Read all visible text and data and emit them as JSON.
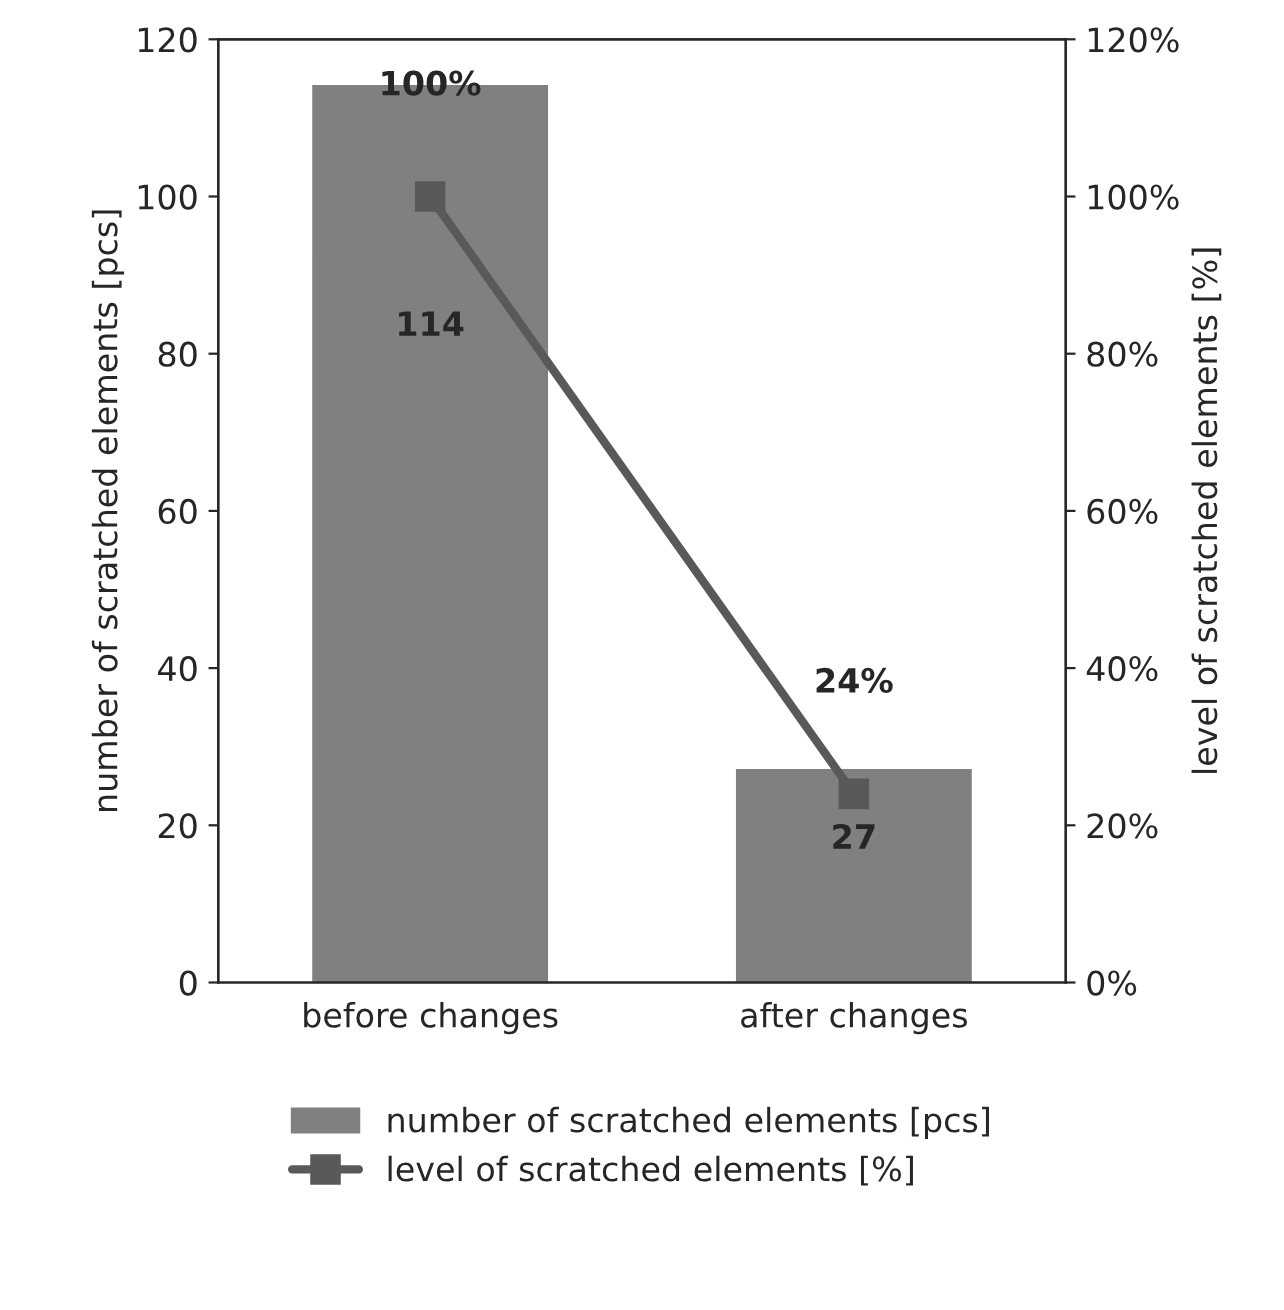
{
  "chart_data": {
    "type": "bar",
    "categories": [
      "before changes",
      "after changes"
    ],
    "ylabel": "number of scratched elements [pcs]",
    "y2label": "level of scratched elements [%]",
    "ylim": [
      0,
      120
    ],
    "yticks": [
      0,
      20,
      40,
      60,
      80,
      100,
      120
    ],
    "y2lim": [
      0,
      120
    ],
    "y2ticks": [
      {
        "value": 0,
        "label": "0%"
      },
      {
        "value": 20,
        "label": "20%"
      },
      {
        "value": 40,
        "label": "40%"
      },
      {
        "value": 60,
        "label": "60%"
      },
      {
        "value": 80,
        "label": "80%"
      },
      {
        "value": 100,
        "label": "100%"
      },
      {
        "value": 120,
        "label": "120%"
      }
    ],
    "series": [
      {
        "name": "number of scratched elements [pcs]",
        "color": "#808080",
        "values": [
          114,
          27
        ],
        "value_labels": [
          "114",
          "27"
        ]
      },
      {
        "name": "level of scratched elements [%]",
        "type": "line",
        "axis": "y2",
        "color": "#595959",
        "marker": "square",
        "line_style": "solid",
        "values": [
          100,
          24
        ],
        "value_labels": [
          "100%",
          "24%"
        ]
      }
    ],
    "grid": false,
    "legend": "bottom"
  }
}
